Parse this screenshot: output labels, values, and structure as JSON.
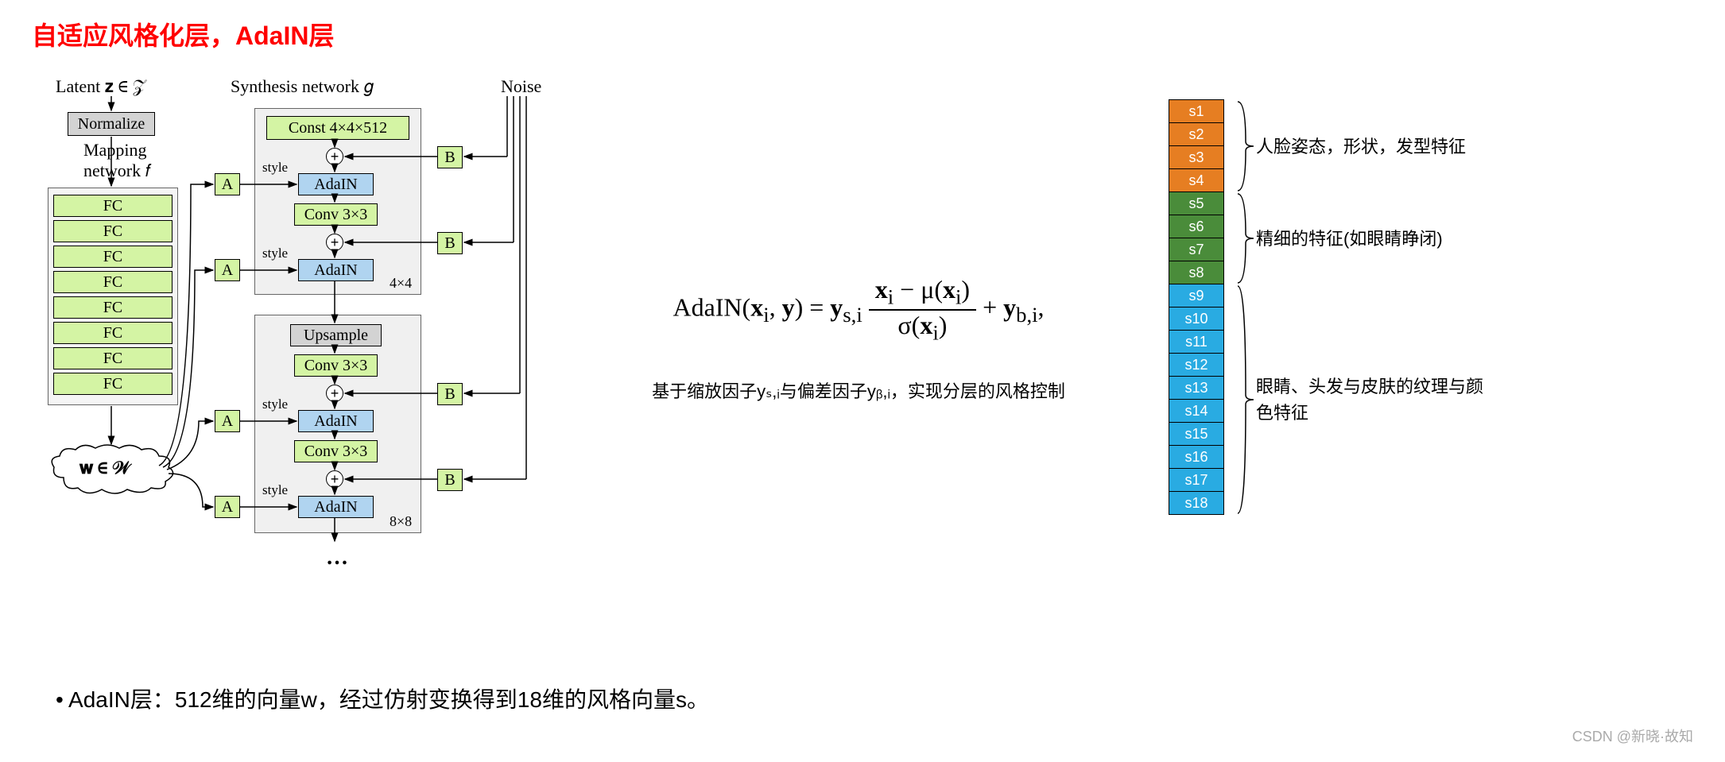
{
  "title": "自适应风格化层，AdaIN层",
  "diagram": {
    "latent_label": "Latent 𝐳 ∈ 𝒵",
    "synthesis_label": "Synthesis network 𝑔",
    "noise_label": "Noise",
    "normalize": "Normalize",
    "mapping_label": "Mapping\nnetwork 𝑓",
    "fc_label": "FC",
    "fc_count": 8,
    "const": "Const 4×4×512",
    "adain": "AdaIN",
    "conv": "Conv 3×3",
    "upsample": "Upsample",
    "a_label": "A",
    "b_label": "B",
    "style_label": "style",
    "w_label": "𝐰 ∈ 𝒲",
    "block1_size": "4×4",
    "block2_size": "8×8",
    "colors": {
      "green": "#d4f4a4",
      "gray": "#d3d3d3",
      "blue": "#b0d4f0",
      "container": "#f0f0f0"
    }
  },
  "formula": {
    "text": "AdaIN(𝐱ᵢ, 𝐲) = 𝐲ₛ,ᵢ (𝐱ᵢ − μ(𝐱ᵢ)) / σ(𝐱ᵢ) + 𝐲ᵦ,ᵢ,",
    "description": "基于缩放因子yₛ,ᵢ与偏差因子yᵦ,ᵢ，实现分层的风格控制"
  },
  "style_layers": {
    "cells": [
      {
        "label": "s1",
        "color": "#e67e22"
      },
      {
        "label": "s2",
        "color": "#e67e22"
      },
      {
        "label": "s3",
        "color": "#e67e22"
      },
      {
        "label": "s4",
        "color": "#e67e22"
      },
      {
        "label": "s5",
        "color": "#4a8c3a"
      },
      {
        "label": "s6",
        "color": "#4a8c3a"
      },
      {
        "label": "s7",
        "color": "#4a8c3a"
      },
      {
        "label": "s8",
        "color": "#4a8c3a"
      },
      {
        "label": "s9",
        "color": "#29abe2"
      },
      {
        "label": "s10",
        "color": "#29abe2"
      },
      {
        "label": "s11",
        "color": "#29abe2"
      },
      {
        "label": "s12",
        "color": "#29abe2"
      },
      {
        "label": "s13",
        "color": "#29abe2"
      },
      {
        "label": "s14",
        "color": "#29abe2"
      },
      {
        "label": "s15",
        "color": "#29abe2"
      },
      {
        "label": "s16",
        "color": "#29abe2"
      },
      {
        "label": "s17",
        "color": "#29abe2"
      },
      {
        "label": "s18",
        "color": "#29abe2"
      }
    ],
    "groups": [
      {
        "start": 0,
        "end": 4,
        "label": "人脸姿态，形状，发型特征"
      },
      {
        "start": 4,
        "end": 8,
        "label": "精细的特征(如眼睛睁闭)"
      },
      {
        "start": 8,
        "end": 18,
        "label": "眼睛、头发与皮肤的纹理与颜色特征"
      }
    ]
  },
  "bullet": "AdaIN层：512维的向量w，经过仿射变换得到18维的风格向量s。",
  "watermark": "CSDN @新晓·故知"
}
